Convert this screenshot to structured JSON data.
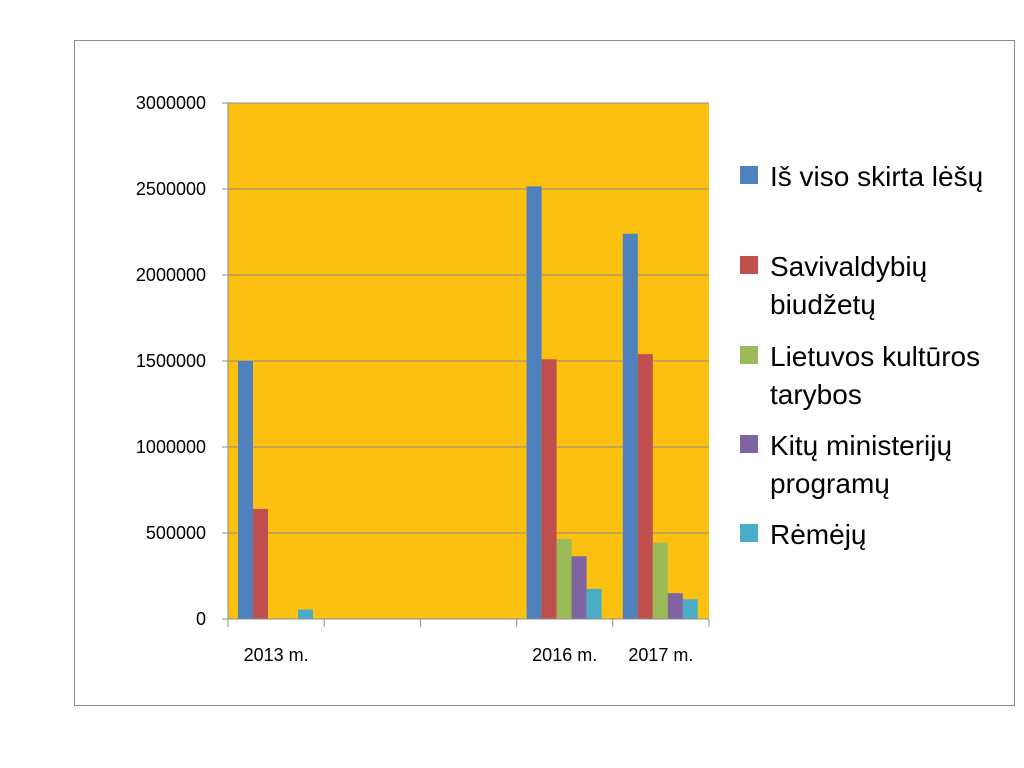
{
  "chart_data": {
    "type": "bar",
    "title": "",
    "xlabel": "",
    "ylabel": "",
    "ylim": [
      0,
      3000000
    ],
    "yticks": [
      0,
      500000,
      1000000,
      1500000,
      2000000,
      2500000,
      3000000
    ],
    "ytick_labels": [
      "0",
      "500000",
      "1000000",
      "1500000",
      "2000000",
      "2500000",
      "3000000"
    ],
    "categories": [
      "2013 m.",
      "",
      "",
      "2016 m.",
      "2017 m."
    ],
    "grid": true,
    "legend_position": "right",
    "plot_background": "#FCC010",
    "series": [
      {
        "name": "Iš viso skirta lėšų",
        "color": "#4F81BD",
        "values": [
          1500000,
          0,
          0,
          2515000,
          2240000
        ]
      },
      {
        "name": "Savivaldybių biudžetų",
        "color": "#C0504D",
        "values": [
          640000,
          0,
          0,
          1510000,
          1540000
        ]
      },
      {
        "name": "Lietuvos kultūros tarybos",
        "color": "#9BBB59",
        "values": [
          0,
          0,
          0,
          465000,
          445000
        ]
      },
      {
        "name": "Kitų ministerijų programų",
        "color": "#8064A2",
        "values": [
          0,
          0,
          0,
          365000,
          150000
        ]
      },
      {
        "name": "Rėmėjų",
        "color": "#4BACC6",
        "values": [
          55000,
          0,
          0,
          175000,
          115000
        ]
      }
    ],
    "legend_lines": [
      [
        "Iš viso skirta lėšų"
      ],
      [
        "Savivaldybių",
        "biudžetų"
      ],
      [
        "Lietuvos kultūros",
        "tarybos"
      ],
      [
        "Kitų ministerijų",
        "programų"
      ],
      [
        "Rėmėjų"
      ]
    ]
  }
}
